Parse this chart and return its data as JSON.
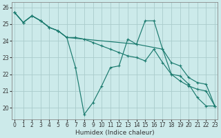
{
  "xlabel": "Humidex (Indice chaleur)",
  "bg_color": "#cceaea",
  "grid_color": "#aacccc",
  "line_color": "#1a7a6e",
  "xlim": [
    -0.3,
    23.3
  ],
  "ylim": [
    19.3,
    26.3
  ],
  "xticks": [
    0,
    1,
    2,
    3,
    4,
    5,
    6,
    7,
    8,
    9,
    10,
    11,
    12,
    13,
    14,
    15,
    16,
    17,
    18,
    19,
    20,
    21,
    22,
    23
  ],
  "yticks": [
    20,
    21,
    22,
    23,
    24,
    25,
    26
  ],
  "lines": [
    {
      "x": [
        0,
        1,
        2,
        3,
        4,
        5,
        6,
        7,
        8,
        9,
        10,
        11,
        12,
        13,
        14,
        15,
        16,
        17,
        18,
        19,
        20,
        21,
        22,
        23
      ],
      "y": [
        25.7,
        25.1,
        25.5,
        25.2,
        24.8,
        24.6,
        24.2,
        22.4,
        19.6,
        20.3,
        21.3,
        22.4,
        22.5,
        24.1,
        23.8,
        25.2,
        25.2,
        23.5,
        22.0,
        21.9,
        21.4,
        20.6,
        20.1,
        20.1
      ]
    },
    {
      "x": [
        0,
        1,
        2,
        3,
        4,
        5,
        6,
        7,
        8,
        9,
        10,
        11,
        12,
        13,
        14,
        15,
        16,
        17,
        18,
        19,
        20,
        21,
        22,
        23
      ],
      "y": [
        25.7,
        25.1,
        25.5,
        25.2,
        24.8,
        24.6,
        24.2,
        24.2,
        24.1,
        23.9,
        23.7,
        23.5,
        23.3,
        23.1,
        23.0,
        22.8,
        23.5,
        22.7,
        22.0,
        21.6,
        21.3,
        21.1,
        21.0,
        20.1
      ]
    },
    {
      "x": [
        0,
        1,
        2,
        3,
        4,
        5,
        6,
        14,
        17,
        18,
        19,
        20,
        21,
        22,
        23
      ],
      "y": [
        25.7,
        25.1,
        25.5,
        25.2,
        24.8,
        24.6,
        24.2,
        23.8,
        23.5,
        22.7,
        22.5,
        21.8,
        21.5,
        21.4,
        20.1
      ]
    }
  ]
}
